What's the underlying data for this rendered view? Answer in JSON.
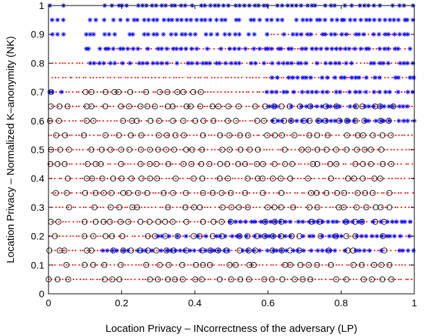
{
  "chart_data": {
    "type": "scatter",
    "title": "",
    "xlabel": "Location Privacy – INcorrectness of the adversary (LP)",
    "ylabel": "Location Privacy – Normalized K–anonymity (NK)",
    "xlim": [
      0,
      1
    ],
    "ylim": [
      0,
      1
    ],
    "x_ticks": [
      "0",
      "0.2",
      "0.4",
      "0.6",
      "0.8",
      "1"
    ],
    "y_ticks": [
      "0",
      "0.1",
      "0.2",
      "0.3",
      "0.4",
      "0.5",
      "0.6",
      "0.7",
      "0.8",
      "0.9",
      "1"
    ],
    "grid": false,
    "legend": "none",
    "series": [
      {
        "marker": "dot",
        "color": "#ff0000",
        "groups": [
          {
            "y": 0.05,
            "x_ranges": [
              [
                0.0,
                1.0
              ]
            ]
          },
          {
            "y": 0.1,
            "x_ranges": [
              [
                0.0,
                1.0
              ]
            ]
          },
          {
            "y": 0.15,
            "x_ranges": [
              [
                0.0,
                1.0
              ]
            ]
          },
          {
            "y": 0.2,
            "x_ranges": [
              [
                0.0,
                1.0
              ]
            ]
          },
          {
            "y": 0.25,
            "x_ranges": [
              [
                0.0,
                1.0
              ]
            ]
          },
          {
            "y": 0.3,
            "x_ranges": [
              [
                0.0,
                1.0
              ]
            ]
          },
          {
            "y": 0.35,
            "x_ranges": [
              [
                0.0,
                1.0
              ]
            ]
          },
          {
            "y": 0.4,
            "x_ranges": [
              [
                0.0,
                1.0
              ]
            ]
          },
          {
            "y": 0.45,
            "x_ranges": [
              [
                0.0,
                1.0
              ]
            ]
          },
          {
            "y": 0.5,
            "x_ranges": [
              [
                0.0,
                1.0
              ]
            ]
          },
          {
            "y": 0.55,
            "x_ranges": [
              [
                0.0,
                1.0
              ]
            ]
          },
          {
            "y": 0.6,
            "x_ranges": [
              [
                0.0,
                1.0
              ]
            ]
          },
          {
            "y": 0.65,
            "x_ranges": [
              [
                0.0,
                1.0
              ]
            ]
          },
          {
            "y": 0.7,
            "x_ranges": [
              [
                0.0,
                1.0
              ]
            ]
          },
          {
            "y": 0.75,
            "x_ranges": [
              [
                0.0,
                0.98
              ]
            ]
          },
          {
            "y": 0.8,
            "x_ranges": [
              [
                0.0,
                0.98
              ]
            ]
          },
          {
            "y": 0.85,
            "x_ranges": [
              [
                0.15,
                0.98
              ]
            ]
          },
          {
            "y": 0.9,
            "x_ranges": [
              [
                0.6,
                0.98
              ]
            ]
          }
        ]
      },
      {
        "marker": "circle",
        "color": "#000000",
        "groups": [
          {
            "y": 0.05,
            "x_ranges": [
              [
                0.0,
                0.05
              ],
              [
                0.1,
                0.95
              ]
            ]
          },
          {
            "y": 0.1,
            "x_ranges": [
              [
                0.0,
                0.05
              ],
              [
                0.1,
                0.95
              ]
            ]
          },
          {
            "y": 0.15,
            "x_ranges": [
              [
                0.0,
                0.05
              ],
              [
                0.1,
                0.95
              ]
            ]
          },
          {
            "y": 0.2,
            "x_ranges": [
              [
                0.0,
                0.05
              ],
              [
                0.1,
                0.95
              ]
            ]
          },
          {
            "y": 0.25,
            "x_ranges": [
              [
                0.0,
                0.05
              ],
              [
                0.1,
                0.95
              ]
            ]
          },
          {
            "y": 0.3,
            "x_ranges": [
              [
                0.0,
                0.05
              ],
              [
                0.1,
                0.95
              ]
            ]
          },
          {
            "y": 0.35,
            "x_ranges": [
              [
                0.0,
                0.05
              ],
              [
                0.1,
                0.95
              ]
            ]
          },
          {
            "y": 0.4,
            "x_ranges": [
              [
                0.0,
                0.05
              ],
              [
                0.1,
                0.95
              ]
            ]
          },
          {
            "y": 0.45,
            "x_ranges": [
              [
                0.0,
                0.05
              ],
              [
                0.1,
                0.95
              ]
            ]
          },
          {
            "y": 0.5,
            "x_ranges": [
              [
                0.0,
                0.05
              ],
              [
                0.1,
                0.95
              ]
            ]
          },
          {
            "y": 0.55,
            "x_ranges": [
              [
                0.0,
                0.05
              ],
              [
                0.1,
                0.95
              ]
            ]
          },
          {
            "y": 0.6,
            "x_ranges": [
              [
                0.0,
                0.05
              ],
              [
                0.1,
                0.95
              ]
            ]
          },
          {
            "y": 0.65,
            "x_ranges": [
              [
                0.0,
                0.05
              ],
              [
                0.1,
                0.95
              ]
            ]
          },
          {
            "y": 0.7,
            "x_ranges": [
              [
                0.0,
                0.05
              ],
              [
                0.1,
                0.45
              ]
            ]
          }
        ]
      },
      {
        "marker": "star",
        "color": "#0000ff",
        "groups": [
          {
            "y": 1.0,
            "x_ranges": [
              [
                0.0,
                0.05
              ],
              [
                0.15,
                0.6
              ],
              [
                0.6,
                1.0
              ]
            ]
          },
          {
            "y": 0.95,
            "x_ranges": [
              [
                0.0,
                0.05
              ],
              [
                0.1,
                0.6
              ],
              [
                0.6,
                1.0
              ]
            ]
          },
          {
            "y": 0.9,
            "x_ranges": [
              [
                0.0,
                0.05
              ],
              [
                0.1,
                0.6
              ],
              [
                0.6,
                1.0
              ]
            ]
          },
          {
            "y": 0.85,
            "x_ranges": [
              [
                0.1,
                0.6
              ],
              [
                0.6,
                1.0
              ]
            ]
          },
          {
            "y": 0.8,
            "x_ranges": [
              [
                0.1,
                0.6
              ],
              [
                0.6,
                1.0
              ]
            ]
          },
          {
            "y": 0.75,
            "x_ranges": [
              [
                0.6,
                1.0
              ]
            ]
          },
          {
            "y": 0.7,
            "x_ranges": [
              [
                0.0,
                0.05
              ],
              [
                0.6,
                1.0
              ]
            ]
          },
          {
            "y": 0.65,
            "x_ranges": [
              [
                0.6,
                1.0
              ]
            ]
          },
          {
            "y": 0.6,
            "x_ranges": [
              [
                0.6,
                1.0
              ]
            ]
          },
          {
            "y": 0.25,
            "x_ranges": [
              [
                0.5,
                1.0
              ]
            ]
          },
          {
            "y": 0.2,
            "x_ranges": [
              [
                0.3,
                1.0
              ]
            ]
          },
          {
            "y": 0.15,
            "x_ranges": [
              [
                0.15,
                1.0
              ]
            ]
          }
        ]
      }
    ]
  }
}
